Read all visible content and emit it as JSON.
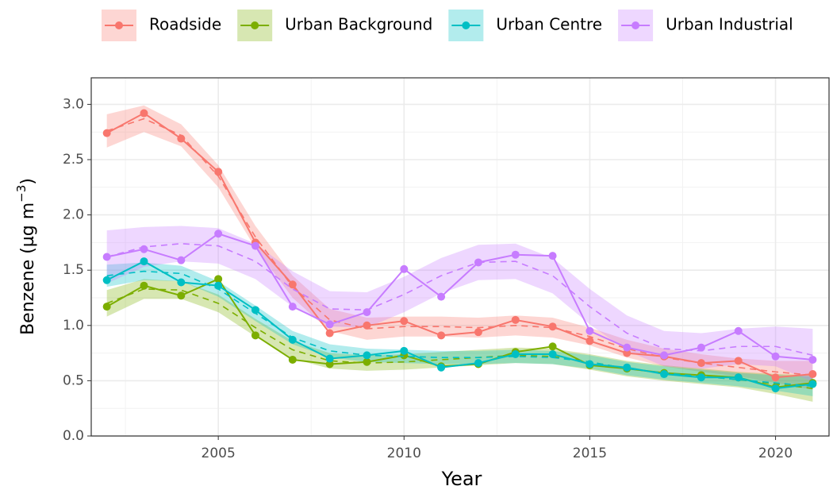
{
  "chart_data": {
    "type": "line",
    "x_label": "Year",
    "y_label": {
      "text": "Benzene (µg m",
      "superscript": "−3",
      "suffix": ")"
    },
    "x": [
      2002,
      2003,
      2004,
      2005,
      2006,
      2007,
      2008,
      2009,
      2010,
      2011,
      2012,
      2013,
      2014,
      2015,
      2016,
      2017,
      2018,
      2019,
      2020,
      2021
    ],
    "xlim": [
      2001.58,
      2021.44
    ],
    "xticks": [
      2005,
      2010,
      2015,
      2020
    ],
    "ylim": [
      0,
      3.24
    ],
    "yticks": [
      {
        "value": 0,
        "label": "0.0"
      },
      {
        "value": 0.5,
        "label": "0.5"
      },
      {
        "value": 1,
        "label": "1.0"
      },
      {
        "value": 1.5,
        "label": "1.5"
      },
      {
        "value": 2,
        "label": "2.0"
      },
      {
        "value": 2.5,
        "label": "2.5"
      },
      {
        "value": 3,
        "label": "3.0"
      }
    ],
    "grid": true,
    "legend": "top",
    "series": [
      {
        "name": "Roadside",
        "color": "#F8766D",
        "values": [
          2.74,
          2.92,
          2.69,
          2.39,
          1.75,
          1.37,
          0.93,
          1.0,
          1.04,
          0.91,
          0.94,
          1.05,
          0.99,
          0.86,
          0.75,
          0.72,
          0.66,
          0.68,
          0.53,
          0.56
        ],
        "trend": [
          2.76,
          2.87,
          2.72,
          2.35,
          1.8,
          1.35,
          1.05,
          0.97,
          0.99,
          0.99,
          0.98,
          1.0,
          0.98,
          0.9,
          0.79,
          0.71,
          0.66,
          0.62,
          0.58,
          0.55
        ],
        "lower": [
          2.61,
          2.75,
          2.62,
          2.25,
          1.7,
          1.25,
          0.95,
          0.87,
          0.9,
          0.9,
          0.89,
          0.91,
          0.89,
          0.82,
          0.71,
          0.63,
          0.58,
          0.54,
          0.48,
          0.42
        ],
        "upper": [
          2.91,
          2.99,
          2.82,
          2.45,
          1.9,
          1.45,
          1.15,
          1.07,
          1.08,
          1.08,
          1.07,
          1.09,
          1.07,
          0.98,
          0.87,
          0.79,
          0.74,
          0.7,
          0.68,
          0.68
        ]
      },
      {
        "name": "Urban Background",
        "color": "#7CAE00",
        "values": [
          1.17,
          1.36,
          1.27,
          1.42,
          0.91,
          0.69,
          0.65,
          0.67,
          0.73,
          0.63,
          0.65,
          0.76,
          0.81,
          0.64,
          0.61,
          0.57,
          0.55,
          0.53,
          0.44,
          0.48
        ],
        "trend": [
          1.2,
          1.33,
          1.32,
          1.2,
          0.98,
          0.78,
          0.68,
          0.66,
          0.67,
          0.69,
          0.71,
          0.73,
          0.72,
          0.67,
          0.61,
          0.57,
          0.54,
          0.51,
          0.47,
          0.43
        ],
        "lower": [
          1.08,
          1.24,
          1.24,
          1.12,
          0.9,
          0.7,
          0.61,
          0.59,
          0.6,
          0.62,
          0.64,
          0.66,
          0.65,
          0.6,
          0.54,
          0.5,
          0.47,
          0.44,
          0.38,
          0.31
        ],
        "upper": [
          1.32,
          1.42,
          1.4,
          1.28,
          1.06,
          0.86,
          0.75,
          0.73,
          0.74,
          0.76,
          0.78,
          0.8,
          0.79,
          0.74,
          0.68,
          0.64,
          0.61,
          0.58,
          0.56,
          0.55
        ]
      },
      {
        "name": "Urban Centre",
        "color": "#00BFC4",
        "values": [
          1.41,
          1.58,
          1.39,
          1.36,
          1.14,
          0.87,
          0.7,
          0.73,
          0.77,
          0.62,
          0.66,
          0.74,
          0.74,
          0.65,
          0.62,
          0.56,
          0.53,
          0.53,
          0.43,
          0.47
        ],
        "trend": [
          1.45,
          1.49,
          1.47,
          1.33,
          1.11,
          0.89,
          0.77,
          0.73,
          0.72,
          0.71,
          0.71,
          0.72,
          0.71,
          0.67,
          0.61,
          0.57,
          0.54,
          0.51,
          0.48,
          0.45
        ],
        "lower": [
          1.35,
          1.41,
          1.4,
          1.26,
          1.04,
          0.83,
          0.71,
          0.67,
          0.66,
          0.65,
          0.65,
          0.66,
          0.65,
          0.61,
          0.55,
          0.51,
          0.48,
          0.45,
          0.41,
          0.36
        ],
        "upper": [
          1.55,
          1.57,
          1.54,
          1.4,
          1.18,
          0.95,
          0.83,
          0.79,
          0.78,
          0.77,
          0.77,
          0.78,
          0.77,
          0.73,
          0.67,
          0.63,
          0.6,
          0.57,
          0.55,
          0.54
        ]
      },
      {
        "name": "Urban Industrial",
        "color": "#C77CFF",
        "values": [
          1.62,
          1.69,
          1.59,
          1.83,
          1.72,
          1.17,
          1.01,
          1.12,
          1.51,
          1.26,
          1.57,
          1.64,
          1.63,
          0.95,
          0.8,
          0.73,
          0.8,
          0.95,
          0.72,
          0.69
        ],
        "trend": [
          1.62,
          1.71,
          1.74,
          1.72,
          1.58,
          1.33,
          1.15,
          1.14,
          1.28,
          1.45,
          1.57,
          1.58,
          1.45,
          1.17,
          0.93,
          0.79,
          0.77,
          0.81,
          0.81,
          0.73
        ],
        "lower": [
          1.38,
          1.53,
          1.58,
          1.56,
          1.42,
          1.17,
          0.99,
          0.98,
          1.12,
          1.29,
          1.41,
          1.42,
          1.29,
          1.01,
          0.77,
          0.63,
          0.61,
          0.65,
          0.63,
          0.49
        ],
        "upper": [
          1.86,
          1.89,
          1.9,
          1.88,
          1.74,
          1.49,
          1.31,
          1.3,
          1.44,
          1.61,
          1.73,
          1.74,
          1.61,
          1.33,
          1.09,
          0.95,
          0.93,
          0.97,
          0.99,
          0.97
        ]
      }
    ]
  }
}
